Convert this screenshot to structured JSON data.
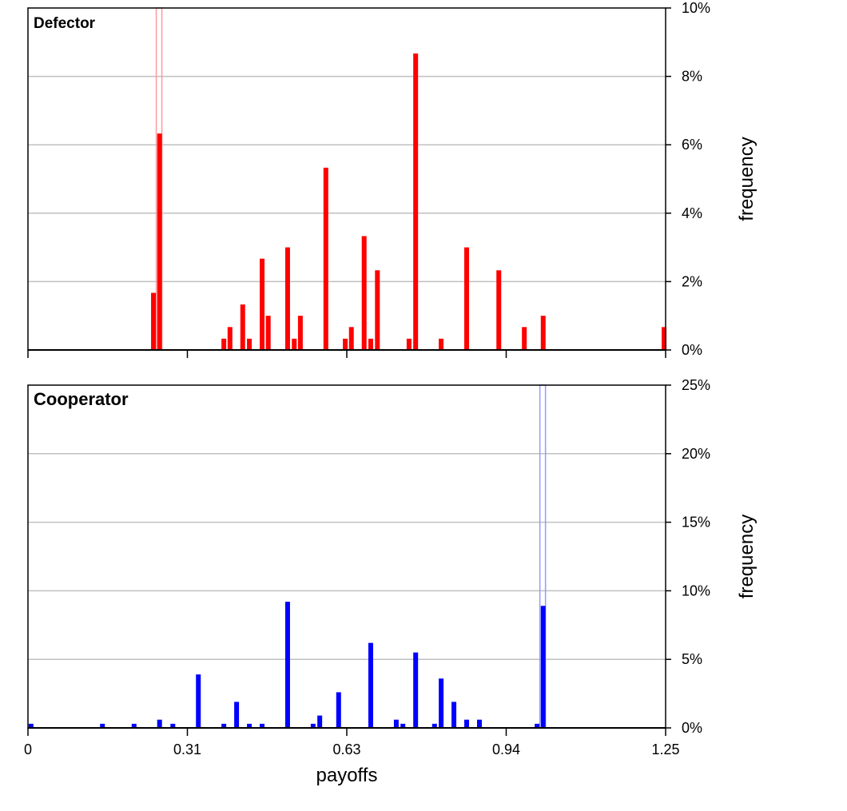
{
  "chart_data": [
    {
      "type": "bar",
      "title": "Defector",
      "ylabel": "frequency",
      "color": "#ff0000",
      "marker_color": "#ff9999",
      "marker_x": 0.257,
      "x": [
        0.246,
        0.258,
        0.384,
        0.396,
        0.421,
        0.434,
        0.459,
        0.471,
        0.509,
        0.522,
        0.534,
        0.584,
        0.622,
        0.634,
        0.659,
        0.672,
        0.685,
        0.747,
        0.76,
        0.81,
        0.86,
        0.923,
        0.973,
        1.01,
        1.247
      ],
      "values": [
        1.67,
        6.33,
        0.33,
        0.67,
        1.33,
        0.33,
        2.67,
        1.0,
        3.0,
        0.33,
        1.0,
        5.33,
        0.33,
        0.67,
        3.33,
        0.33,
        2.33,
        0.33,
        8.67,
        0.33,
        3.0,
        2.33,
        0.67,
        1.0,
        0.67
      ],
      "xlim": [
        0,
        1.25
      ],
      "ylim": [
        0,
        10
      ],
      "yticks": [
        {
          "value": 0,
          "label": "0%"
        },
        {
          "value": 2,
          "label": "2%"
        },
        {
          "value": 4,
          "label": "4%"
        },
        {
          "value": 6,
          "label": "6%"
        },
        {
          "value": 8,
          "label": "8%"
        },
        {
          "value": 10,
          "label": "10%"
        }
      ],
      "grid": true
    },
    {
      "type": "bar",
      "title": "Cooperator",
      "ylabel": "frequency",
      "xlabel": "payoffs",
      "color": "#0000ff",
      "marker_color": "#9999ff",
      "marker_x": 1.009,
      "x": [
        0.006,
        0.146,
        0.208,
        0.258,
        0.284,
        0.334,
        0.384,
        0.409,
        0.434,
        0.459,
        0.509,
        0.559,
        0.572,
        0.609,
        0.672,
        0.722,
        0.735,
        0.76,
        0.797,
        0.81,
        0.835,
        0.86,
        0.885,
        0.998,
        1.01
      ],
      "values": [
        0.3,
        0.3,
        0.3,
        0.6,
        0.3,
        3.9,
        0.3,
        1.9,
        0.3,
        0.3,
        9.2,
        0.3,
        0.9,
        2.6,
        6.2,
        0.6,
        0.3,
        5.5,
        0.3,
        3.6,
        1.9,
        0.6,
        0.6,
        0.3,
        8.9
      ],
      "xlim": [
        0,
        1.25
      ],
      "ylim": [
        0,
        25
      ],
      "xticks": [
        0,
        {
          "value": 0.3125,
          "label": "0.31"
        },
        {
          "value": 0.625,
          "label": "0.63"
        },
        {
          "value": 0.9375,
          "label": "0.94"
        },
        1.25
      ],
      "yticks": [
        {
          "value": 0,
          "label": "0%"
        },
        {
          "value": 5,
          "label": "5%"
        },
        {
          "value": 10,
          "label": "10%"
        },
        {
          "value": 15,
          "label": "15%"
        },
        {
          "value": 20,
          "label": "20%"
        },
        {
          "value": 25,
          "label": "25%"
        }
      ],
      "grid": true
    }
  ]
}
